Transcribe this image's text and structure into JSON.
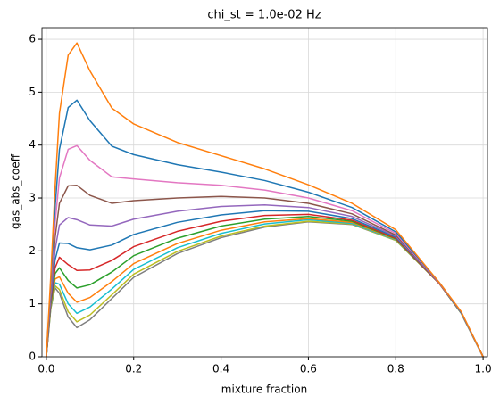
{
  "chart_data": {
    "type": "line",
    "title": "chi_st = 1.0e-02 Hz",
    "x_label": "mixture fraction",
    "y_label": "gas_abs_coeff",
    "x": [
      0,
      0.01,
      0.02,
      0.03,
      0.05,
      0.07,
      0.1,
      0.15,
      0.2,
      0.3,
      0.4,
      0.5,
      0.6,
      0.7,
      0.8,
      0.9,
      0.95,
      1.0
    ],
    "series": [
      {
        "color": "#7f7f7f",
        "values": [
          0,
          0.9,
          1.3,
          1.2,
          0.75,
          0.55,
          0.7,
          1.1,
          1.5,
          1.95,
          2.25,
          2.45,
          2.55,
          2.5,
          2.2,
          1.38,
          0.82,
          0
        ]
      },
      {
        "color": "#bcbd22",
        "values": [
          0,
          0.91,
          1.34,
          1.27,
          0.85,
          0.66,
          0.79,
          1.17,
          1.56,
          1.99,
          2.28,
          2.47,
          2.56,
          2.51,
          2.2,
          1.38,
          0.82,
          0
        ]
      },
      {
        "color": "#17becf",
        "values": [
          0,
          0.93,
          1.4,
          1.37,
          1,
          0.82,
          0.94,
          1.28,
          1.65,
          2.06,
          2.33,
          2.51,
          2.59,
          2.52,
          2.21,
          1.38,
          0.82,
          0
        ]
      },
      {
        "color": "#ff7f0e",
        "values": [
          0,
          0.95,
          1.47,
          1.51,
          1.2,
          1.03,
          1.12,
          1.42,
          1.76,
          2.14,
          2.39,
          2.55,
          2.61,
          2.54,
          2.22,
          1.38,
          0.82,
          0
        ]
      },
      {
        "color": "#2ca02c",
        "values": [
          0,
          0.98,
          1.57,
          1.68,
          1.44,
          1.3,
          1.36,
          1.6,
          1.91,
          2.24,
          2.47,
          2.6,
          2.65,
          2.56,
          2.23,
          1.38,
          0.82,
          0
        ]
      },
      {
        "color": "#d62728",
        "values": [
          0,
          1.02,
          1.68,
          1.88,
          1.74,
          1.63,
          1.64,
          1.82,
          2.08,
          2.37,
          2.56,
          2.67,
          2.69,
          2.58,
          2.24,
          1.38,
          0.83,
          0
        ]
      },
      {
        "color": "#1f77b4",
        "values": [
          0,
          1.07,
          1.83,
          2.15,
          2.14,
          2.06,
          2.02,
          2.11,
          2.31,
          2.54,
          2.68,
          2.76,
          2.75,
          2.61,
          2.26,
          1.39,
          0.83,
          0
        ]
      },
      {
        "color": "#9467bd",
        "values": [
          0,
          1.13,
          2.02,
          2.49,
          2.63,
          2.59,
          2.49,
          2.47,
          2.6,
          2.75,
          2.84,
          2.87,
          2.82,
          2.65,
          2.28,
          1.39,
          0.83,
          0
        ]
      },
      {
        "color": "#8c564b",
        "values": [
          0,
          1.2,
          2.25,
          2.9,
          3.23,
          3.24,
          3.05,
          2.9,
          2.95,
          3,
          3.03,
          3,
          2.9,
          2.7,
          2.3,
          1.39,
          0.84,
          0
        ]
      },
      {
        "color": "#e377c2",
        "values": [
          0,
          1.28,
          2.52,
          3.38,
          3.92,
          3.99,
          3.71,
          3.4,
          3.36,
          3.29,
          3.24,
          3.15,
          3,
          2.76,
          2.33,
          1.39,
          0.84,
          0
        ]
      },
      {
        "color": "#1f77b4",
        "values": [
          0,
          1.38,
          2.82,
          3.92,
          4.71,
          4.85,
          4.46,
          3.98,
          3.82,
          3.63,
          3.49,
          3.33,
          3.11,
          2.82,
          2.36,
          1.4,
          0.84,
          0
        ]
      },
      {
        "color": "#ff7f0e",
        "values": [
          0,
          1.5,
          3.2,
          4.6,
          5.7,
          5.93,
          5.4,
          4.7,
          4.4,
          4.05,
          3.8,
          3.55,
          3.25,
          2.9,
          2.4,
          1.4,
          0.85,
          0
        ]
      }
    ],
    "xlim": [
      -0.01,
      1.01
    ],
    "ylim": [
      0,
      6.22
    ],
    "xticks": [
      {
        "value": 0,
        "label": "0.0"
      },
      0.2,
      0.4,
      0.6,
      0.8,
      {
        "value": 1,
        "label": "1.0"
      }
    ],
    "yticks": [
      0,
      1,
      2,
      3,
      4,
      5,
      6
    ],
    "grid": true
  }
}
